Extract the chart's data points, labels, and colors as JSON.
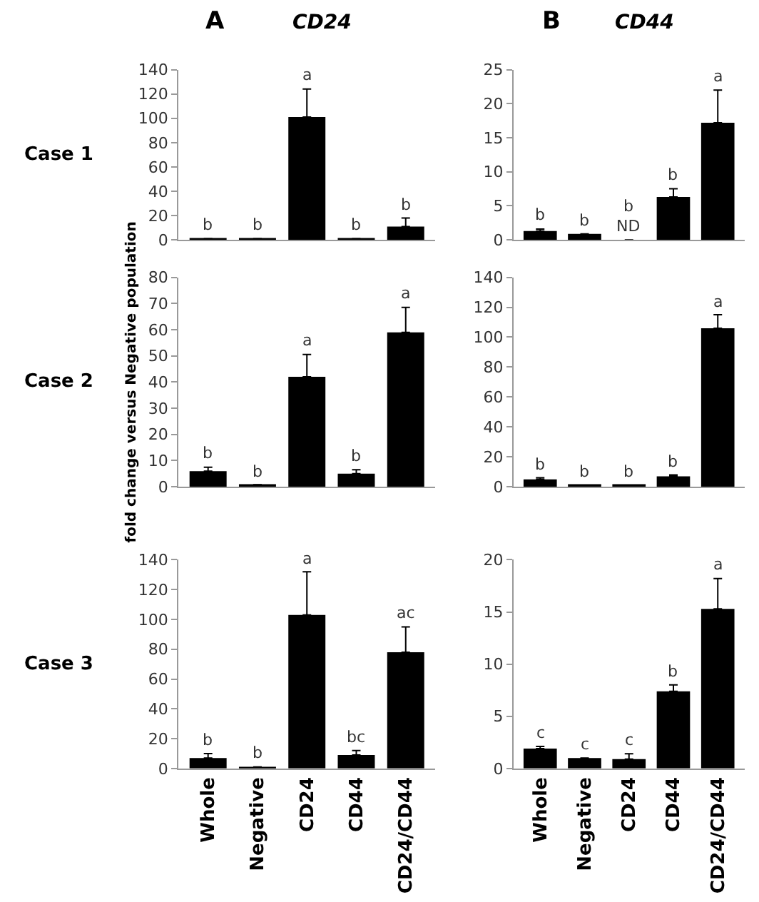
{
  "chart_data": [
    {
      "type": "bar",
      "title": "A",
      "subtitle": "CD24",
      "annotations": [
        "Case 1",
        {
          "text": "b",
          "x": "Whole",
          "y": 1
        },
        {
          "text": "b",
          "x": "Negative",
          "y": 1
        },
        {
          "text": "a",
          "x": "CD24",
          "y": 124
        },
        {
          "text": "b",
          "x": "CD44",
          "y": 1
        },
        {
          "text": "b",
          "x": "CD24/CD44",
          "y": 18
        }
      ],
      "categories": [
        "Whole",
        "Negative",
        "CD24",
        "CD44",
        "CD24/CD44"
      ],
      "series": [
        {
          "color": "#000000",
          "values": [
            1,
            1,
            101,
            1,
            11
          ],
          "errors": [
            null,
            null,
            [
              101,
              124
            ],
            null,
            [
              11,
              18
            ]
          ]
        }
      ],
      "ylim": [
        0,
        140
      ],
      "yticks": [
        0,
        20,
        40,
        60,
        80,
        100,
        120,
        140
      ],
      "tick_labels": "y"
    },
    {
      "type": "bar",
      "title": "B",
      "subtitle": "CD44",
      "annotations": [
        {
          "text": "b",
          "x": "Whole",
          "y": 1.6
        },
        {
          "text": "b",
          "x": "Negative",
          "y": 0.9
        },
        {
          "text": "ND",
          "x": "CD24",
          "y": 0
        },
        {
          "text": "b",
          "x": "CD24",
          "y": 0
        },
        {
          "text": "b",
          "x": "CD44",
          "y": 7.5
        },
        {
          "text": "a",
          "x": "CD24/CD44",
          "y": 22
        }
      ],
      "categories": [
        "Whole",
        "Negative",
        "CD24",
        "CD44",
        "CD24/CD44"
      ],
      "series": [
        {
          "color": "#000000",
          "values": [
            1.3,
            0.9,
            0,
            6.3,
            17.2
          ],
          "errors": [
            [
              1.3,
              1.6
            ],
            null,
            null,
            [
              6.3,
              7.5
            ],
            [
              17.2,
              22
            ]
          ]
        }
      ],
      "ylim": [
        0,
        25
      ],
      "yticks": [
        0,
        5,
        10,
        15,
        20,
        25
      ],
      "tick_labels": "y"
    },
    {
      "type": "bar",
      "ylabel": "fold change versus Negative population",
      "annotations": [
        "Case 2",
        {
          "text": "b",
          "x": "Whole",
          "y": 7.5
        },
        {
          "text": "b",
          "x": "Negative",
          "y": 0.8
        },
        {
          "text": "a",
          "x": "CD24",
          "y": 50.5
        },
        {
          "text": "b",
          "x": "CD44",
          "y": 6.5
        },
        {
          "text": "a",
          "x": "CD24/CD44",
          "y": 68.5
        }
      ],
      "categories": [
        "Whole",
        "Negative",
        "CD24",
        "CD44",
        "CD24/CD44"
      ],
      "series": [
        {
          "color": "#000000",
          "values": [
            6,
            0.8,
            42,
            5,
            59
          ],
          "errors": [
            [
              6,
              7.5
            ],
            null,
            [
              42,
              50.5
            ],
            [
              5,
              6.5
            ],
            [
              59,
              68.5
            ]
          ]
        }
      ],
      "ylim": [
        0,
        80
      ],
      "yticks": [
        0,
        10,
        20,
        30,
        40,
        50,
        60,
        70,
        80
      ],
      "tick_labels": "y"
    },
    {
      "type": "bar",
      "annotations": [
        {
          "text": "b",
          "x": "Whole",
          "y": 6
        },
        {
          "text": "b",
          "x": "Negative",
          "y": 1
        },
        {
          "text": "b",
          "x": "CD24",
          "y": 1
        },
        {
          "text": "b",
          "x": "CD44",
          "y": 8
        },
        {
          "text": "a",
          "x": "CD24/CD44",
          "y": 115
        }
      ],
      "categories": [
        "Whole",
        "Negative",
        "CD24",
        "CD44",
        "CD24/CD44"
      ],
      "series": [
        {
          "color": "#000000",
          "values": [
            5,
            1,
            1,
            7,
            106
          ],
          "errors": [
            [
              5,
              6
            ],
            null,
            null,
            [
              7,
              8
            ],
            [
              106,
              115
            ]
          ]
        }
      ],
      "ylim": [
        0,
        140
      ],
      "yticks": [
        0,
        20,
        40,
        60,
        80,
        100,
        120,
        140
      ],
      "tick_labels": "y"
    },
    {
      "type": "bar",
      "annotations": [
        "Case 3",
        {
          "text": "b",
          "x": "Whole",
          "y": 10
        },
        {
          "text": "b",
          "x": "Negative",
          "y": 1
        },
        {
          "text": "a",
          "x": "CD24",
          "y": 132
        },
        {
          "text": "bc",
          "x": "CD44",
          "y": 12
        },
        {
          "text": "ac",
          "x": "CD24/CD44",
          "y": 95
        }
      ],
      "categories": [
        "Whole",
        "Negative",
        "CD24",
        "CD44",
        "CD24/CD44"
      ],
      "series": [
        {
          "color": "#000000",
          "values": [
            7,
            1,
            103,
            9,
            78
          ],
          "errors": [
            [
              7,
              10
            ],
            null,
            [
              103,
              132
            ],
            [
              9,
              12
            ],
            [
              78,
              95
            ]
          ]
        }
      ],
      "ylim": [
        0,
        140
      ],
      "yticks": [
        0,
        20,
        40,
        60,
        80,
        100,
        120,
        140
      ]
    },
    {
      "type": "bar",
      "annotations": [
        {
          "text": "c",
          "x": "Whole",
          "y": 2.1
        },
        {
          "text": "c",
          "x": "Negative",
          "y": 1.0
        },
        {
          "text": "c",
          "x": "CD24",
          "y": 1.4
        },
        {
          "text": "b",
          "x": "CD44",
          "y": 8
        },
        {
          "text": "a",
          "x": "CD24/CD44",
          "y": 18.2
        }
      ],
      "categories": [
        "Whole",
        "Negative",
        "CD24",
        "CD44",
        "CD24/CD44"
      ],
      "series": [
        {
          "color": "#000000",
          "values": [
            1.9,
            1.0,
            0.9,
            7.4,
            15.3
          ],
          "errors": [
            [
              1.9,
              2.1
            ],
            null,
            [
              0.9,
              1.4
            ],
            [
              7.4,
              8
            ],
            [
              15.3,
              18.2
            ]
          ]
        }
      ],
      "ylim": [
        0,
        20
      ],
      "yticks": [
        0,
        5,
        10,
        15,
        20
      ]
    }
  ]
}
